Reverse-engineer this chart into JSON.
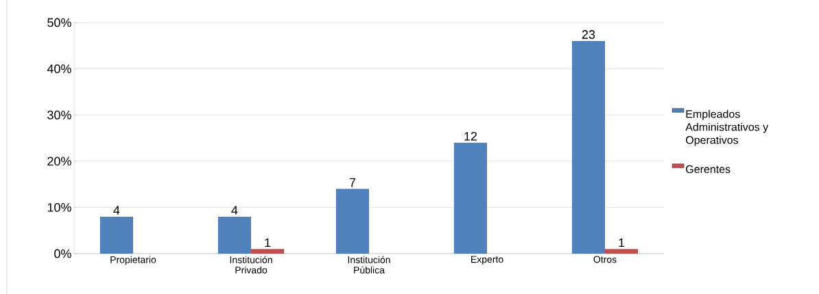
{
  "chart_data": {
    "type": "bar",
    "categories": [
      "Propietario",
      "Institución Privado",
      "Institución Pública",
      "Experto",
      "Otros"
    ],
    "series": [
      {
        "name": "Empleados Administrativos y Operativos",
        "color": "#4f81bd",
        "values": [
          8,
          8,
          14,
          24,
          46
        ]
      },
      {
        "name": "Gerentes",
        "color": "#c0504d",
        "values": [
          null,
          1,
          null,
          null,
          1
        ]
      }
    ],
    "annotations": [
      {
        "text": "4",
        "x": "Propietario",
        "y": 8
      },
      {
        "text": "4",
        "x": "Institución Privado",
        "y": 8
      },
      {
        "text": "1",
        "x": "Institución Privado",
        "y": 1
      },
      {
        "text": "7",
        "x": "Institución Pública",
        "y": 14
      },
      {
        "text": "12",
        "x": "Experto",
        "y": 24
      },
      {
        "text": "23",
        "x": "Otros",
        "y": 46
      },
      {
        "text": "1",
        "x": "Otros",
        "y": 1
      }
    ],
    "ylim": [
      0,
      50
    ],
    "yticks": [
      {
        "value": 0,
        "label": "0%"
      },
      {
        "value": 10,
        "label": "10%"
      },
      {
        "value": 20,
        "label": "20%"
      },
      {
        "value": 30,
        "label": "30%"
      },
      {
        "value": 40,
        "label": "40%"
      },
      {
        "value": 50,
        "label": "50%"
      }
    ],
    "grid": "y",
    "legend": "right"
  }
}
